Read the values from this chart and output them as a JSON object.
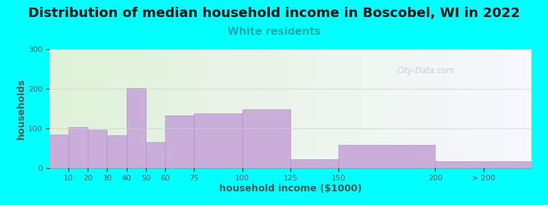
{
  "title": "Distribution of median household income in Boscobel, WI in 2022",
  "subtitle": "White residents",
  "xlabel": "household income ($1000)",
  "ylabel": "households",
  "background_outer": "#00FFFF",
  "bar_color": "#c9aed9",
  "bar_edgecolor": "#b090c8",
  "bin_edges": [
    0,
    10,
    20,
    30,
    40,
    50,
    60,
    75,
    100,
    125,
    150,
    200,
    250
  ],
  "values": [
    85,
    103,
    97,
    82,
    202,
    65,
    133,
    138,
    148,
    22,
    58,
    18
  ],
  "xtick_positions": [
    10,
    20,
    30,
    40,
    50,
    60,
    75,
    100,
    125,
    150,
    200
  ],
  "xtick_labels": [
    "10",
    "20",
    "30",
    "40",
    "50",
    "60",
    "75",
    "100",
    "125",
    "150",
    "200"
  ],
  "last_tick_label": "> 200",
  "ylim": [
    0,
    300
  ],
  "yticks": [
    0,
    100,
    200,
    300
  ],
  "title_fontsize": 14,
  "subtitle_fontsize": 11,
  "subtitle_color": "#00AAAA",
  "axis_label_fontsize": 10,
  "tick_fontsize": 8,
  "watermark_text": "City-Data.com",
  "watermark_color": "#b8b8c8",
  "inner_bg_left": "#dff2d8",
  "inner_bg_right": "#f8f8ff"
}
